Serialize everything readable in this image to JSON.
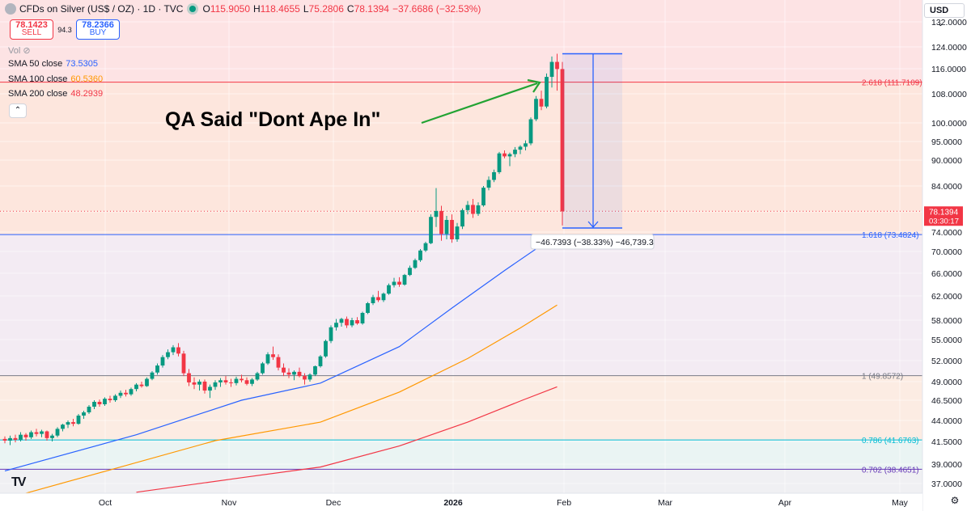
{
  "header": {
    "symbol": "CFDs on Silver (US$ / OZ) · 1D · TVC",
    "o_label": "O",
    "o_value": "115.9050",
    "h_label": "H",
    "h_value": "118.4655",
    "l_label": "L",
    "l_value": "75.2806",
    "c_label": "C",
    "c_value": "78.1394",
    "change": "−37.6686 (−32.53%)"
  },
  "trade": {
    "sell_price": "78.1423",
    "sell_label": "SELL",
    "spread": "94.3",
    "buy_price": "78.2366",
    "buy_label": "BUY"
  },
  "vol_label": "Vol",
  "indicators": [
    {
      "label": "SMA 50 close",
      "value": "73.5305",
      "color": "#2962ff"
    },
    {
      "label": "SMA 100 close",
      "value": "60.5360",
      "color": "#ff9800"
    },
    {
      "label": "SMA 200 close",
      "value": "48.2939",
      "color": "#f23645"
    }
  ],
  "currency": "USD",
  "annotation_text": "QA Said \"Dont Ape In\"",
  "measure_label": "−46.7393 (−38.33%) −46,739.3",
  "price_badge": {
    "price": "78.1394",
    "countdown": "03:30:17"
  },
  "chart_data": {
    "type": "candlestick",
    "title": "CFDs on Silver (US$ / OZ) · 1D · TVC",
    "y_axis_ticks": [
      "132.0000",
      "124.0000",
      "116.0000",
      "108.0000",
      "100.0000",
      "95.0000",
      "90.0000",
      "84.0000",
      "78.0000",
      "74.0000",
      "70.0000",
      "66.0000",
      "62.0000",
      "58.0000",
      "55.0000",
      "52.0000",
      "49.0000",
      "46.5000",
      "44.0000",
      "41.5000",
      "39.0000",
      "37.0000"
    ],
    "x_axis_ticks": [
      "Oct",
      "Nov",
      "Dec",
      "2026",
      "Feb",
      "Mar",
      "Apr",
      "May"
    ],
    "fib_levels": [
      {
        "label": "2.618 (111.7109)",
        "value": 111.7109,
        "color": "#f23645"
      },
      {
        "label": "1.618 (73.4824)",
        "value": 73.4824,
        "color": "#2962ff"
      },
      {
        "label": "1 (49.8572)",
        "value": 49.8572,
        "color": "#787b86"
      },
      {
        "label": "0.786 (41.6763)",
        "value": 41.6763,
        "color": "#00bcd4"
      },
      {
        "label": "0.702 (38.4651)",
        "value": 38.4651,
        "color": "#673ab7"
      }
    ],
    "last_price": 78.1394,
    "measure": {
      "from": 121.5,
      "to": 74.8,
      "change": -46.7393,
      "percent": -38.33
    },
    "candles": [
      [
        41.8,
        42.1,
        41.3,
        41.6
      ],
      [
        41.6,
        42.2,
        41.1,
        41.9
      ],
      [
        41.9,
        42.3,
        41.4,
        41.7
      ],
      [
        41.7,
        42.6,
        41.5,
        42.3
      ],
      [
        42.3,
        42.5,
        41.6,
        42.0
      ],
      [
        42.0,
        42.8,
        41.8,
        42.6
      ],
      [
        42.6,
        43.0,
        42.1,
        42.4
      ],
      [
        42.4,
        42.9,
        42.0,
        42.7
      ],
      [
        42.7,
        42.8,
        41.6,
        41.9
      ],
      [
        41.9,
        42.4,
        41.5,
        42.2
      ],
      [
        42.2,
        43.2,
        42.0,
        43.0
      ],
      [
        43.0,
        43.6,
        42.7,
        43.5
      ],
      [
        43.5,
        44.0,
        43.1,
        43.8
      ],
      [
        43.8,
        44.2,
        43.3,
        43.6
      ],
      [
        43.6,
        44.8,
        43.5,
        44.6
      ],
      [
        44.6,
        45.2,
        44.2,
        45.0
      ],
      [
        45.0,
        45.9,
        44.8,
        45.7
      ],
      [
        45.7,
        46.5,
        45.4,
        46.3
      ],
      [
        46.3,
        46.6,
        45.7,
        46.0
      ],
      [
        46.0,
        46.9,
        45.8,
        46.7
      ],
      [
        46.7,
        47.1,
        46.2,
        46.5
      ],
      [
        46.5,
        47.3,
        46.3,
        47.1
      ],
      [
        47.1,
        47.8,
        46.8,
        47.5
      ],
      [
        47.5,
        47.9,
        47.0,
        47.3
      ],
      [
        47.3,
        48.2,
        47.1,
        48.0
      ],
      [
        48.0,
        48.8,
        47.7,
        48.6
      ],
      [
        48.6,
        49.0,
        48.2,
        48.4
      ],
      [
        48.4,
        49.6,
        48.3,
        49.4
      ],
      [
        49.4,
        50.5,
        49.2,
        50.3
      ],
      [
        50.3,
        51.6,
        50.0,
        51.3
      ],
      [
        51.3,
        52.8,
        51.0,
        52.5
      ],
      [
        52.5,
        53.6,
        52.2,
        53.2
      ],
      [
        53.2,
        54.2,
        52.8,
        53.9
      ],
      [
        53.9,
        54.5,
        52.6,
        53.0
      ],
      [
        53.0,
        53.4,
        49.8,
        50.2
      ],
      [
        50.2,
        50.8,
        48.4,
        48.9
      ],
      [
        48.9,
        49.6,
        48.0,
        48.6
      ],
      [
        48.6,
        49.3,
        47.8,
        49.0
      ],
      [
        49.0,
        49.3,
        47.4,
        47.8
      ],
      [
        47.8,
        48.6,
        46.8,
        48.3
      ],
      [
        48.3,
        49.2,
        47.9,
        48.9
      ],
      [
        48.9,
        49.5,
        48.3,
        49.2
      ],
      [
        49.2,
        49.8,
        48.6,
        48.9
      ],
      [
        48.9,
        49.4,
        48.3,
        48.8
      ],
      [
        48.8,
        49.7,
        48.5,
        49.4
      ],
      [
        49.4,
        50.0,
        48.9,
        49.2
      ],
      [
        49.2,
        49.6,
        48.5,
        48.7
      ],
      [
        48.7,
        49.5,
        48.4,
        49.3
      ],
      [
        49.3,
        50.4,
        49.1,
        50.2
      ],
      [
        50.2,
        51.8,
        50.0,
        51.6
      ],
      [
        51.6,
        53.2,
        51.4,
        52.9
      ],
      [
        52.9,
        54.0,
        52.1,
        52.5
      ],
      [
        52.5,
        52.9,
        50.6,
        51.0
      ],
      [
        51.0,
        51.6,
        49.8,
        50.3
      ],
      [
        50.3,
        50.9,
        49.5,
        50.0
      ],
      [
        50.0,
        50.6,
        49.2,
        50.4
      ],
      [
        50.4,
        51.0,
        49.6,
        49.8
      ],
      [
        49.8,
        50.2,
        48.6,
        49.3
      ],
      [
        49.3,
        50.2,
        49.0,
        50.0
      ],
      [
        50.0,
        51.3,
        49.8,
        51.2
      ],
      [
        51.2,
        52.8,
        51.0,
        52.6
      ],
      [
        52.6,
        55.0,
        52.4,
        54.8
      ],
      [
        54.8,
        57.2,
        54.5,
        56.9
      ],
      [
        56.9,
        58.2,
        56.4,
        57.6
      ],
      [
        57.6,
        58.4,
        57.0,
        58.2
      ],
      [
        58.2,
        58.6,
        56.8,
        57.2
      ],
      [
        57.2,
        58.4,
        56.9,
        58.0
      ],
      [
        58.0,
        58.5,
        57.3,
        57.5
      ],
      [
        57.5,
        59.4,
        57.3,
        59.2
      ],
      [
        59.2,
        61.0,
        59.0,
        60.8
      ],
      [
        60.8,
        62.2,
        60.5,
        61.8
      ],
      [
        61.8,
        62.9,
        61.0,
        61.3
      ],
      [
        61.3,
        62.6,
        61.0,
        62.4
      ],
      [
        62.4,
        64.2,
        62.2,
        63.9
      ],
      [
        63.9,
        65.2,
        63.5,
        64.5
      ],
      [
        64.5,
        65.3,
        63.6,
        64.0
      ],
      [
        64.0,
        65.9,
        63.8,
        65.7
      ],
      [
        65.7,
        67.4,
        65.5,
        67.0
      ],
      [
        67.0,
        68.7,
        66.8,
        68.4
      ],
      [
        68.4,
        70.5,
        68.1,
        70.2
      ],
      [
        70.2,
        72.0,
        69.9,
        71.7
      ],
      [
        71.7,
        77.5,
        71.5,
        77.0
      ],
      [
        77.0,
        83.5,
        75.0,
        78.2
      ],
      [
        78.2,
        79.4,
        72.2,
        73.6
      ],
      [
        73.6,
        77.2,
        72.5,
        76.4
      ],
      [
        76.4,
        77.5,
        71.8,
        72.5
      ],
      [
        72.5,
        75.8,
        72.0,
        75.1
      ],
      [
        75.1,
        78.8,
        74.6,
        78.4
      ],
      [
        78.4,
        80.5,
        77.5,
        79.6
      ],
      [
        79.6,
        81.0,
        76.8,
        77.6
      ],
      [
        77.6,
        80.2,
        77.2,
        79.5
      ],
      [
        79.5,
        84.0,
        79.2,
        83.6
      ],
      [
        83.6,
        86.2,
        83.0,
        85.4
      ],
      [
        85.4,
        87.8,
        84.9,
        87.2
      ],
      [
        87.2,
        92.2,
        86.8,
        91.8
      ],
      [
        91.8,
        92.6,
        90.5,
        91.0
      ],
      [
        91.0,
        92.0,
        88.6,
        91.6
      ],
      [
        91.6,
        93.5,
        90.8,
        92.8
      ],
      [
        92.8,
        94.0,
        91.6,
        93.6
      ],
      [
        93.6,
        95.3,
        92.6,
        94.5
      ],
      [
        94.5,
        101.5,
        94.0,
        101.0
      ],
      [
        101.0,
        107.4,
        100.5,
        106.6
      ],
      [
        106.6,
        109.0,
        103.5,
        104.5
      ],
      [
        104.5,
        114.5,
        104.0,
        113.4
      ],
      [
        113.4,
        120.5,
        110.0,
        118.5
      ],
      [
        118.5,
        121.5,
        109.0,
        115.9
      ],
      [
        115.9,
        118.5,
        75.3,
        78.1
      ]
    ],
    "series": [
      {
        "name": "SMA 50 close",
        "color": "#2962ff",
        "points": [
          [
            0,
            38.3
          ],
          [
            25,
            42.3
          ],
          [
            45,
            46.5
          ],
          [
            60,
            48.8
          ],
          [
            75,
            54.0
          ],
          [
            85,
            60.0
          ],
          [
            95,
            66.5
          ],
          [
            105,
            73.5
          ]
        ]
      },
      {
        "name": "SMA 100 close",
        "color": "#ff9800",
        "points": [
          [
            0,
            35.4
          ],
          [
            20,
            38.4
          ],
          [
            40,
            41.6
          ],
          [
            60,
            43.8
          ],
          [
            75,
            47.6
          ],
          [
            88,
            52.3
          ],
          [
            98,
            56.8
          ],
          [
            105,
            60.5
          ]
        ]
      },
      {
        "name": "SMA 200 close",
        "color": "#f23645",
        "points": [
          [
            25,
            36.1
          ],
          [
            45,
            37.6
          ],
          [
            60,
            38.7
          ],
          [
            75,
            41.0
          ],
          [
            88,
            43.8
          ],
          [
            98,
            46.4
          ],
          [
            105,
            48.3
          ]
        ]
      }
    ]
  }
}
